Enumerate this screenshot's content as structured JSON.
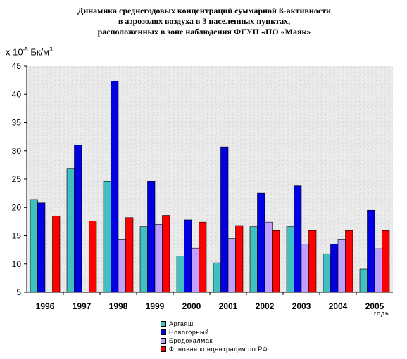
{
  "title_lines": [
    "Динамика среднегодовых концентраций суммарной ß-активности",
    "в аэрозолях воздуха в 3 населенных пунктах,",
    "расположенных в зоне наблюдения ФГУП «ПО «Маяк»"
  ],
  "ylabel": {
    "prefix": "х 10",
    "exp": "-5",
    "unit": "Бк/м",
    "unit_exp": "3"
  },
  "xlabel": "годы",
  "chart_data": {
    "type": "bar",
    "categories": [
      "1996",
      "1997",
      "1998",
      "1999",
      "2000",
      "2001",
      "2002",
      "2003",
      "2004",
      "2005"
    ],
    "series": [
      {
        "name": "Аргаяш",
        "color": "#40C0C0",
        "values": [
          21.4,
          26.9,
          24.6,
          16.6,
          11.4,
          10.2,
          16.6,
          16.6,
          11.8,
          9.1
        ]
      },
      {
        "name": "Новогорный",
        "color": "#0000E0",
        "values": [
          20.8,
          31.0,
          42.3,
          24.6,
          17.8,
          30.7,
          22.5,
          23.8,
          13.5,
          19.5
        ]
      },
      {
        "name": "Бродокалмак",
        "color": "#C0A0FF",
        "values": [
          null,
          null,
          14.4,
          17.0,
          12.8,
          14.5,
          17.4,
          13.5,
          14.4,
          12.7
        ]
      },
      {
        "name": "Фоновая концентрация по РФ",
        "color": "#FF0000",
        "values": [
          18.5,
          17.6,
          18.2,
          18.6,
          17.4,
          16.8,
          15.9,
          15.9,
          15.9,
          15.9
        ]
      }
    ],
    "ylim": [
      5,
      45
    ],
    "yticks": [
      5,
      10,
      15,
      20,
      25,
      30,
      35,
      40,
      45
    ],
    "grid": false,
    "legend_position": "bottom"
  }
}
